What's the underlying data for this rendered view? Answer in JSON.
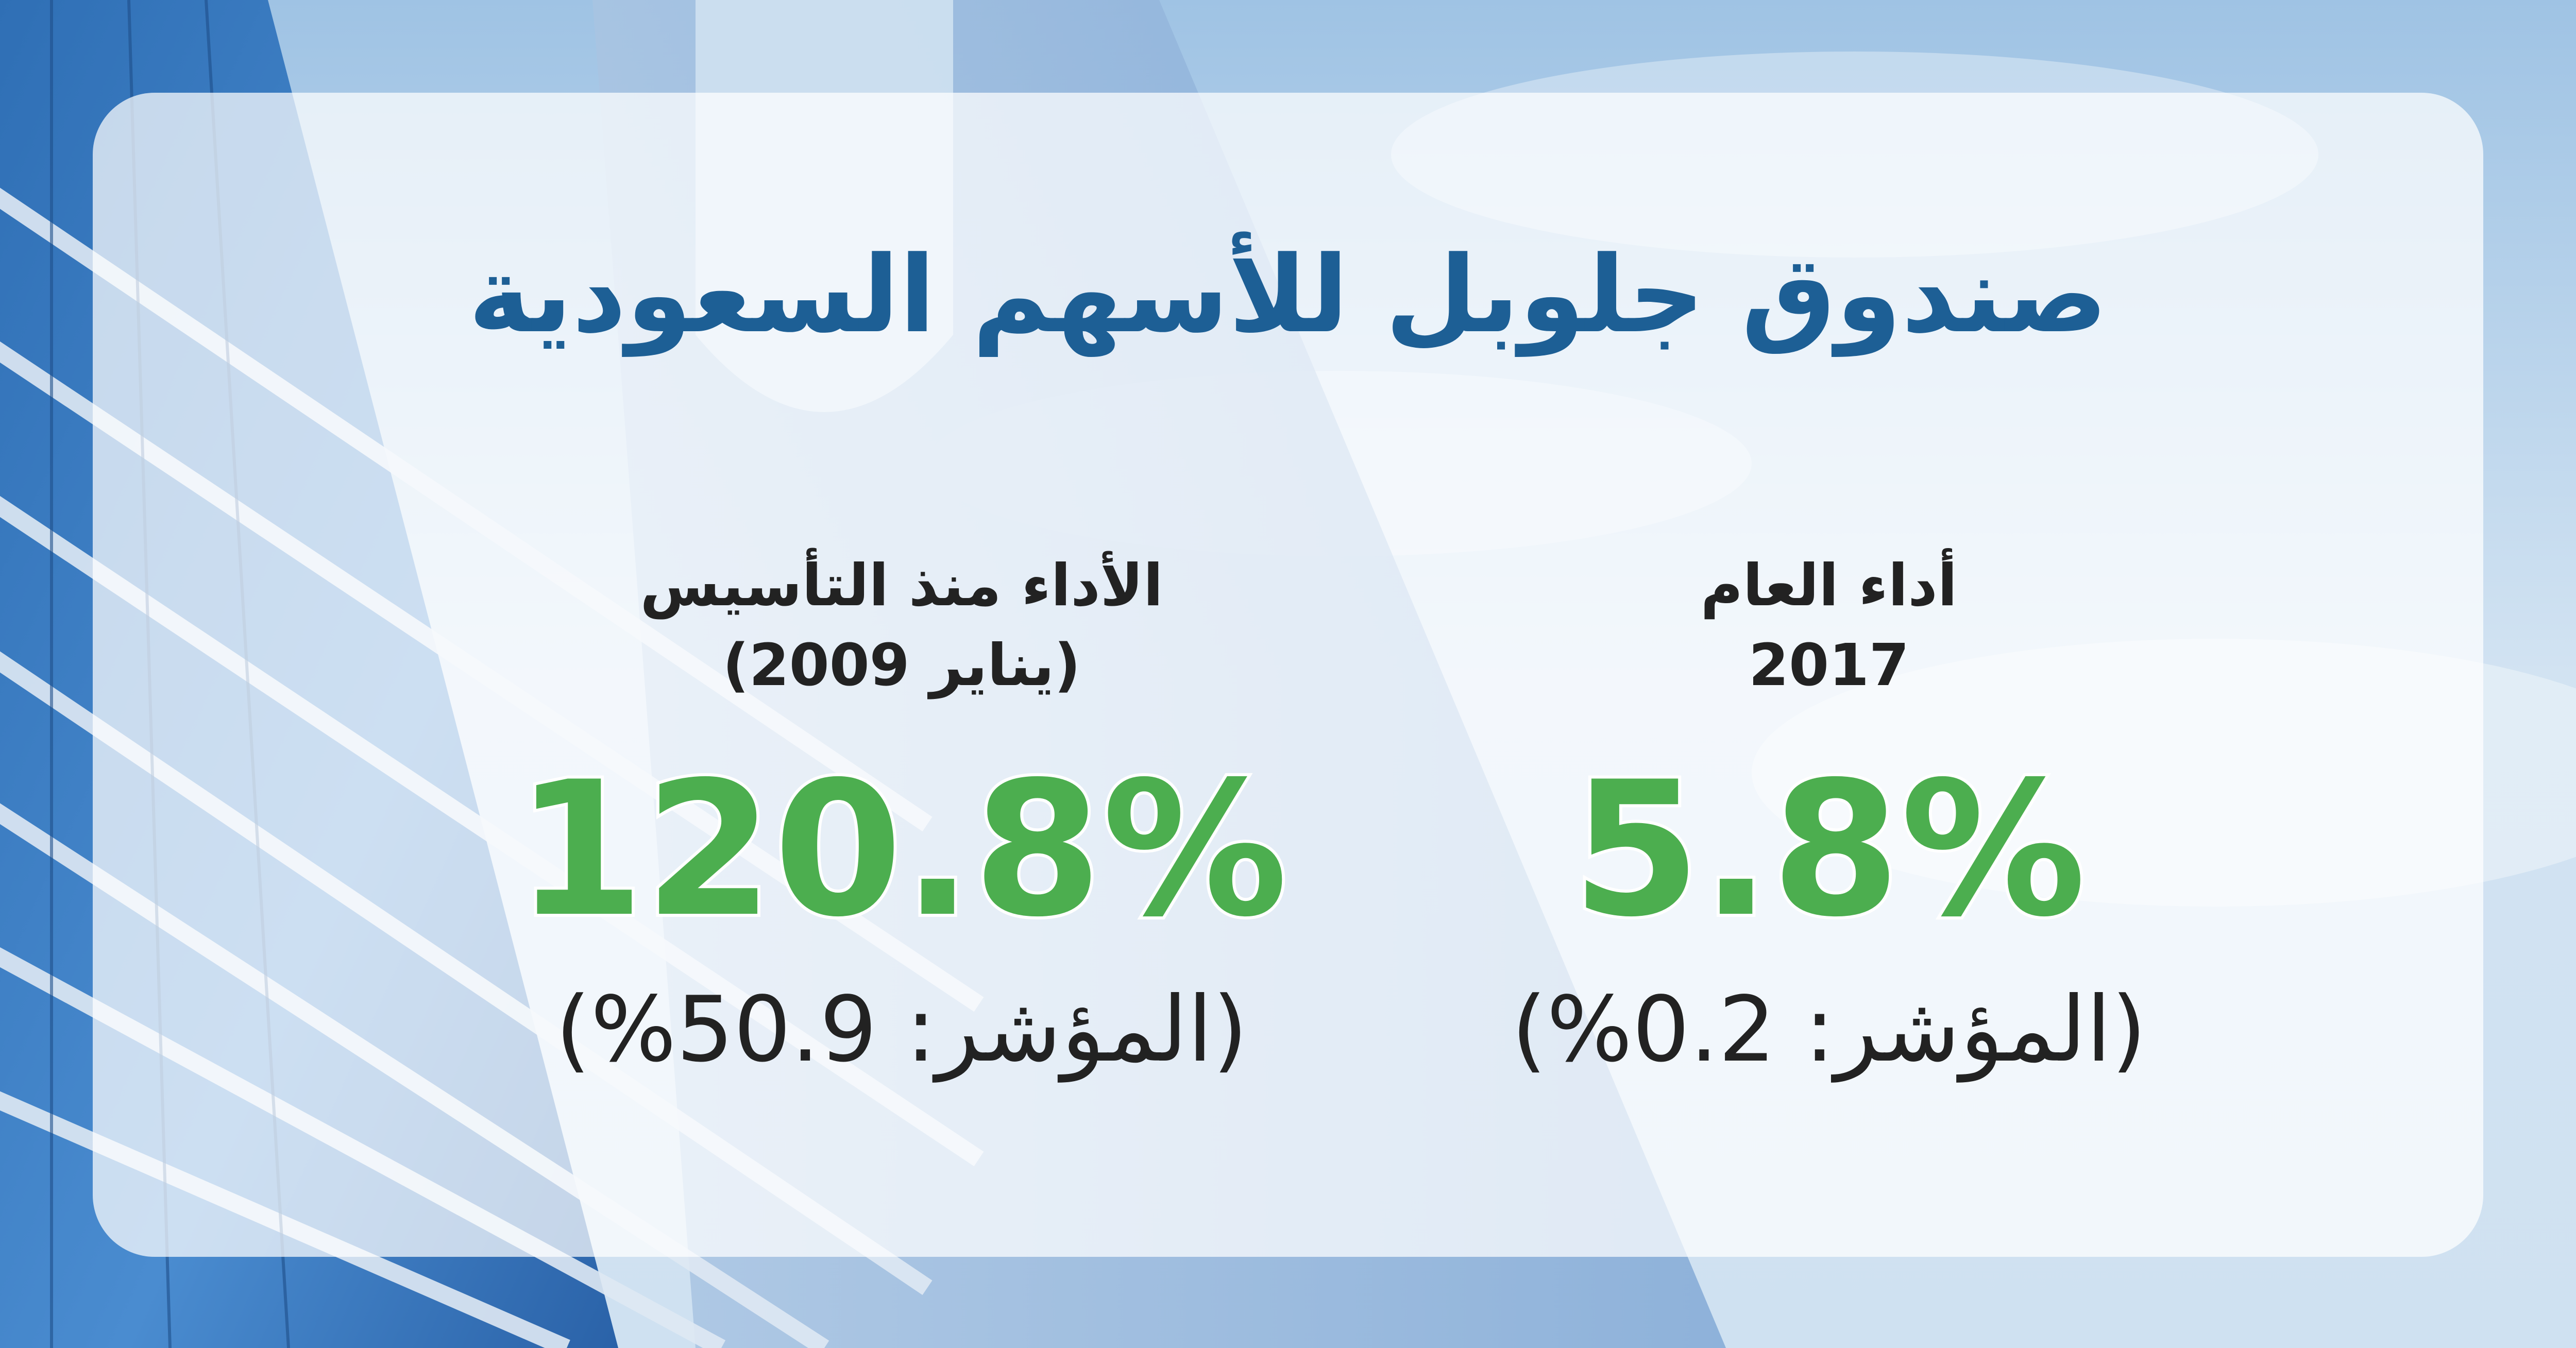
{
  "colors": {
    "title": "#1d5f95",
    "value": "#4cae4f",
    "text": "#222222",
    "panel": "#ffffff"
  },
  "title": "صندوق جلوبل للأسهم السعودية",
  "stats": [
    {
      "label_line1": "الأداء منذ التأسيس",
      "label_line2": "(يناير 2009)",
      "value": "120.8%",
      "index": "(المؤشر: 50.9%)"
    },
    {
      "label_line1": "أداء العام",
      "label_line2": "2017",
      "value": "5.8%",
      "index": "(المؤشر: 0.2%)"
    }
  ]
}
